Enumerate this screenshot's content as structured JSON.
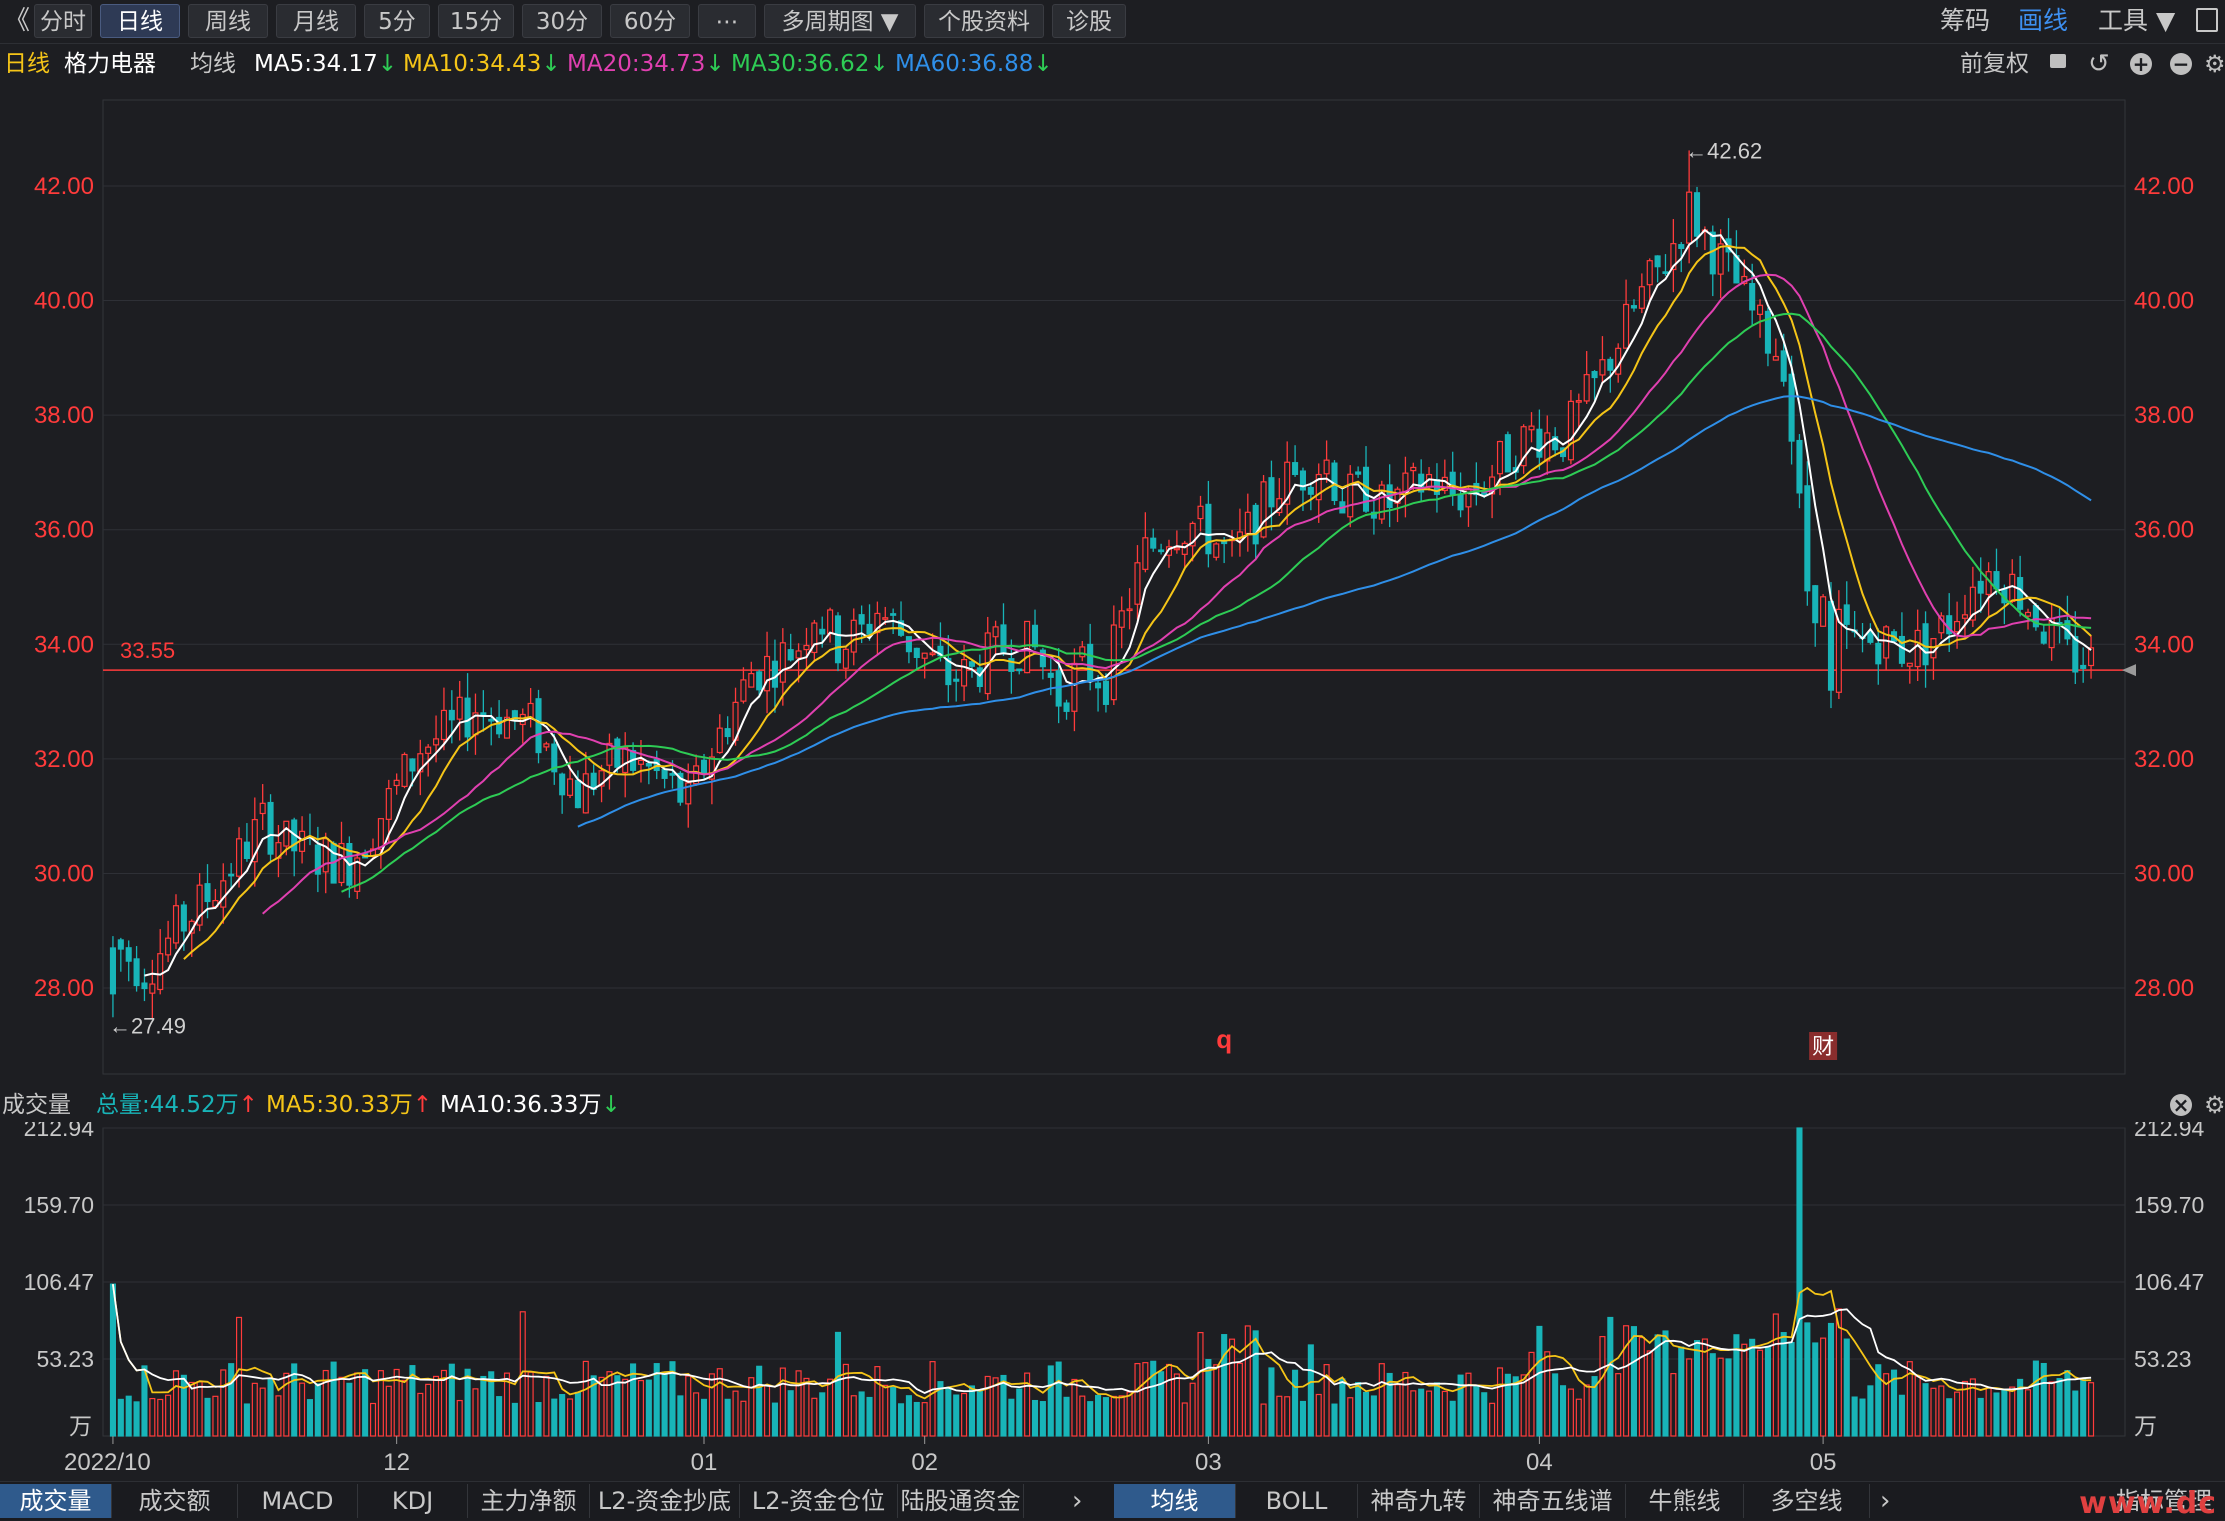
{
  "toolbar": {
    "back_glyph": "《",
    "tabs": [
      "分时",
      "日线",
      "周线",
      "月线",
      "5分",
      "15分",
      "30分",
      "60分",
      "⋯",
      "多周期图 ▼",
      "个股资料",
      "诊股"
    ],
    "active_tab": "日线",
    "right_items": [
      "筹码",
      "画线",
      "工具 ▼"
    ],
    "right_active": "画线"
  },
  "ma_bar": {
    "period": "日线",
    "stock": "格力电器",
    "label": "均线",
    "ma5": "MA5:34.17",
    "ma10": "MA10:34.43",
    "ma20": "MA20:34.73",
    "ma30": "MA30:36.62",
    "ma60": "MA60:36.88",
    "arrow_down": "↓",
    "adjust": "前复权",
    "colors": {
      "ma5": "#ffffff",
      "ma10": "#f5c518",
      "ma20": "#e040b0",
      "ma30": "#2ecc55",
      "ma60": "#2f8fe8"
    }
  },
  "volume_bar": {
    "label": "成交量",
    "total": "总量:44.52万",
    "ma5": "MA5:30.33万",
    "ma10": "MA10:36.33万",
    "up_arrow": "↑",
    "down_arrow": "↓"
  },
  "bottom_tabs": [
    "成交量",
    "成交额",
    "MACD",
    "KDJ",
    "主力净额",
    "L2-资金抄底",
    "L2-资金仓位",
    "陆股通资金"
  ],
  "bottom_tabs_active": "成交量",
  "bottom_tabs2": [
    "均线",
    "BOLL",
    "神奇九转",
    "神奇五线谱",
    "牛熊线",
    "多空线"
  ],
  "bottom_tabs2_active": "均线",
  "bottom_right": "指标管理",
  "watermark": "www.dc",
  "chart_data": {
    "type": "candlestick",
    "price_axis": {
      "ylim": [
        26.5,
        43.5
      ],
      "ticks": [
        42.0,
        40.0,
        38.0,
        36.0,
        34.0,
        32.0,
        30.0,
        28.0
      ],
      "tick_labels": [
        "42.00",
        "40.00",
        "38.00",
        "36.00",
        "34.00",
        "32.00",
        "30.00",
        "28.00"
      ]
    },
    "volume_axis": {
      "ylim": [
        0,
        212.94
      ],
      "ticks": [
        212.94,
        159.7,
        106.47,
        53.23
      ],
      "tick_labels": [
        "212.94",
        "159.70",
        "106.47",
        "53.23"
      ],
      "unit": "万"
    },
    "x_labels": [
      "2022/10",
      "12",
      "01",
      "02",
      "03",
      "04",
      "05"
    ],
    "x_label_index": [
      0,
      36,
      75,
      103,
      139,
      181,
      217
    ],
    "high_mark": "42.62",
    "low_mark": "27.49",
    "ref_line": {
      "value": 33.55,
      "label": "33.55",
      "color": "#ff3b3b"
    },
    "markers": [
      {
        "text": "q",
        "index": 141
      },
      {
        "text": "财",
        "index": 217
      }
    ],
    "up_color": "#ff3b3b",
    "down_color": "#18b4b8",
    "anchors": [
      [
        0,
        28.8
      ],
      [
        4,
        28.3
      ],
      [
        8,
        29.0
      ],
      [
        12,
        29.6
      ],
      [
        16,
        30.3
      ],
      [
        19,
        30.9
      ],
      [
        22,
        30.5
      ],
      [
        26,
        30.3
      ],
      [
        30,
        30.2
      ],
      [
        33,
        30.8
      ],
      [
        36,
        31.5
      ],
      [
        39,
        32.2
      ],
      [
        43,
        32.5
      ],
      [
        46,
        32.9
      ],
      [
        50,
        32.7
      ],
      [
        53,
        32.6
      ],
      [
        56,
        32.0
      ],
      [
        59,
        31.4
      ],
      [
        62,
        31.8
      ],
      [
        65,
        32.0
      ],
      [
        68,
        31.8
      ],
      [
        71,
        31.5
      ],
      [
        73,
        31.2
      ],
      [
        75,
        31.9
      ],
      [
        78,
        32.7
      ],
      [
        81,
        33.5
      ],
      [
        84,
        33.7
      ],
      [
        87,
        34.0
      ],
      [
        89,
        34.6
      ],
      [
        92,
        34.0
      ],
      [
        95,
        34.2
      ],
      [
        97,
        34.6
      ],
      [
        100,
        34.2
      ],
      [
        103,
        33.8
      ],
      [
        106,
        33.4
      ],
      [
        109,
        33.5
      ],
      [
        112,
        33.9
      ],
      [
        115,
        34.0
      ],
      [
        117,
        33.9
      ],
      [
        120,
        33.1
      ],
      [
        123,
        33.6
      ],
      [
        126,
        33.4
      ],
      [
        128,
        34.4
      ],
      [
        131,
        35.6
      ],
      [
        134,
        36.0
      ],
      [
        137,
        36.1
      ],
      [
        139,
        35.9
      ],
      [
        142,
        35.5
      ],
      [
        145,
        36.2
      ],
      [
        148,
        36.8
      ],
      [
        151,
        37.0
      ],
      [
        154,
        37.2
      ],
      [
        156,
        36.5
      ],
      [
        159,
        36.7
      ],
      [
        161,
        36.4
      ],
      [
        164,
        36.6
      ],
      [
        167,
        36.9
      ],
      [
        170,
        36.6
      ],
      [
        173,
        36.7
      ],
      [
        177,
        37.3
      ],
      [
        180,
        37.7
      ],
      [
        184,
        37.6
      ],
      [
        188,
        38.5
      ],
      [
        191,
        39.3
      ],
      [
        194,
        40.1
      ],
      [
        197,
        40.7
      ],
      [
        200,
        41.6
      ],
      [
        203,
        40.9
      ],
      [
        206,
        40.3
      ],
      [
        209,
        39.5
      ],
      [
        212,
        39.0
      ],
      [
        215,
        35.0
      ],
      [
        218,
        34.4
      ],
      [
        221,
        34.0
      ],
      [
        224,
        34.1
      ],
      [
        227,
        33.9
      ],
      [
        230,
        34.0
      ],
      [
        233,
        34.4
      ],
      [
        236,
        35.1
      ],
      [
        239,
        35.3
      ],
      [
        242,
        34.9
      ],
      [
        245,
        34.3
      ],
      [
        248,
        33.8
      ],
      [
        251,
        33.7
      ]
    ]
  }
}
